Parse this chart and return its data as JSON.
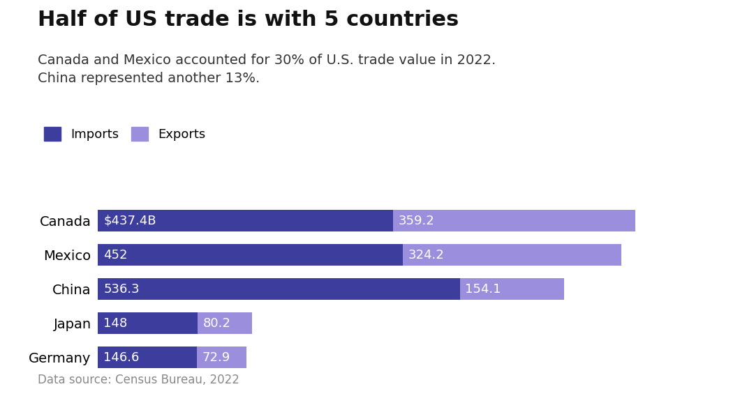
{
  "title": "Half of US trade is with 5 countries",
  "subtitle": "Canada and Mexico accounted for 30% of U.S. trade value in 2022.\nChina represented another 13%.",
  "footnote": "Data source: Census Bureau, 2022",
  "categories": [
    "Canada",
    "Mexico",
    "China",
    "Japan",
    "Germany"
  ],
  "imports": [
    437.4,
    452.0,
    536.3,
    148.0,
    146.6
  ],
  "exports": [
    359.2,
    324.2,
    154.1,
    80.2,
    72.9
  ],
  "import_labels": [
    "$437.4B",
    "452",
    "536.3",
    "148",
    "146.6"
  ],
  "export_labels": [
    "359.2",
    "324.2",
    "154.1",
    "80.2",
    "72.9"
  ],
  "import_color": "#3d3d9e",
  "export_color": "#9b8fdd",
  "background_color": "#ffffff",
  "title_fontsize": 22,
  "subtitle_fontsize": 14,
  "label_fontsize": 13,
  "legend_fontsize": 13,
  "footnote_fontsize": 12,
  "category_fontsize": 14
}
